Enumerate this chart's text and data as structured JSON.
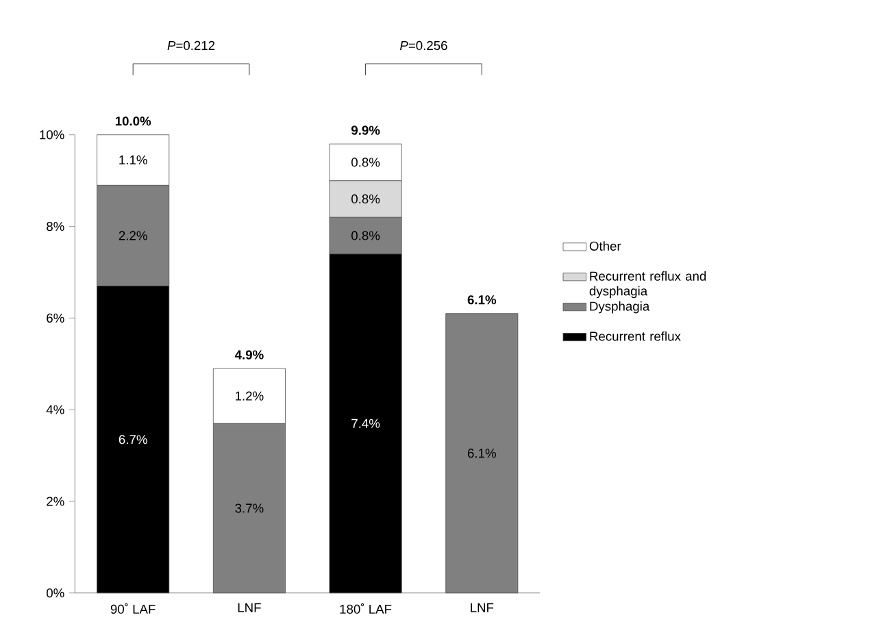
{
  "chart_data": {
    "type": "bar",
    "stacked": true,
    "categories": [
      "90˚ LAF",
      "LNF",
      "180˚ LAF",
      "LNF"
    ],
    "series": [
      {
        "name": "Recurrent reflux",
        "color": "#000000",
        "values": [
          6.7,
          null,
          7.4,
          null
        ],
        "value_labels": [
          "6.7%",
          null,
          "7.4%",
          null
        ]
      },
      {
        "name": "Dysphagia",
        "color": "#808080",
        "values": [
          2.2,
          3.7,
          0.8,
          6.1
        ],
        "value_labels": [
          "2.2%",
          "3.7%",
          "0.8%",
          "6.1%"
        ]
      },
      {
        "name": "Recurrent reflux and dysphagia",
        "color": "#d9d9d9",
        "values": [
          null,
          null,
          0.8,
          null
        ],
        "value_labels": [
          null,
          null,
          "0.8%",
          null
        ]
      },
      {
        "name": "Other",
        "color": "#ffffff",
        "values": [
          1.1,
          1.2,
          0.8,
          null
        ],
        "value_labels": [
          "1.1%",
          "1.2%",
          "0.8%",
          null
        ]
      }
    ],
    "totals": [
      "10.0%",
      "4.9%",
      "9.9%",
      "6.1%"
    ],
    "annotations": [
      "*P*=0.212",
      "*P*=0.256"
    ],
    "ylim": [
      0,
      10
    ],
    "yticks": [
      {
        "value": 0,
        "label": "0%"
      },
      {
        "value": 2,
        "label": "2%"
      },
      {
        "value": 4,
        "label": "4%"
      },
      {
        "value": 6,
        "label": "6%"
      },
      {
        "value": 8,
        "label": "8%"
      },
      {
        "value": 10,
        "label": "10%"
      }
    ],
    "legend": "right",
    "grid": false
  }
}
